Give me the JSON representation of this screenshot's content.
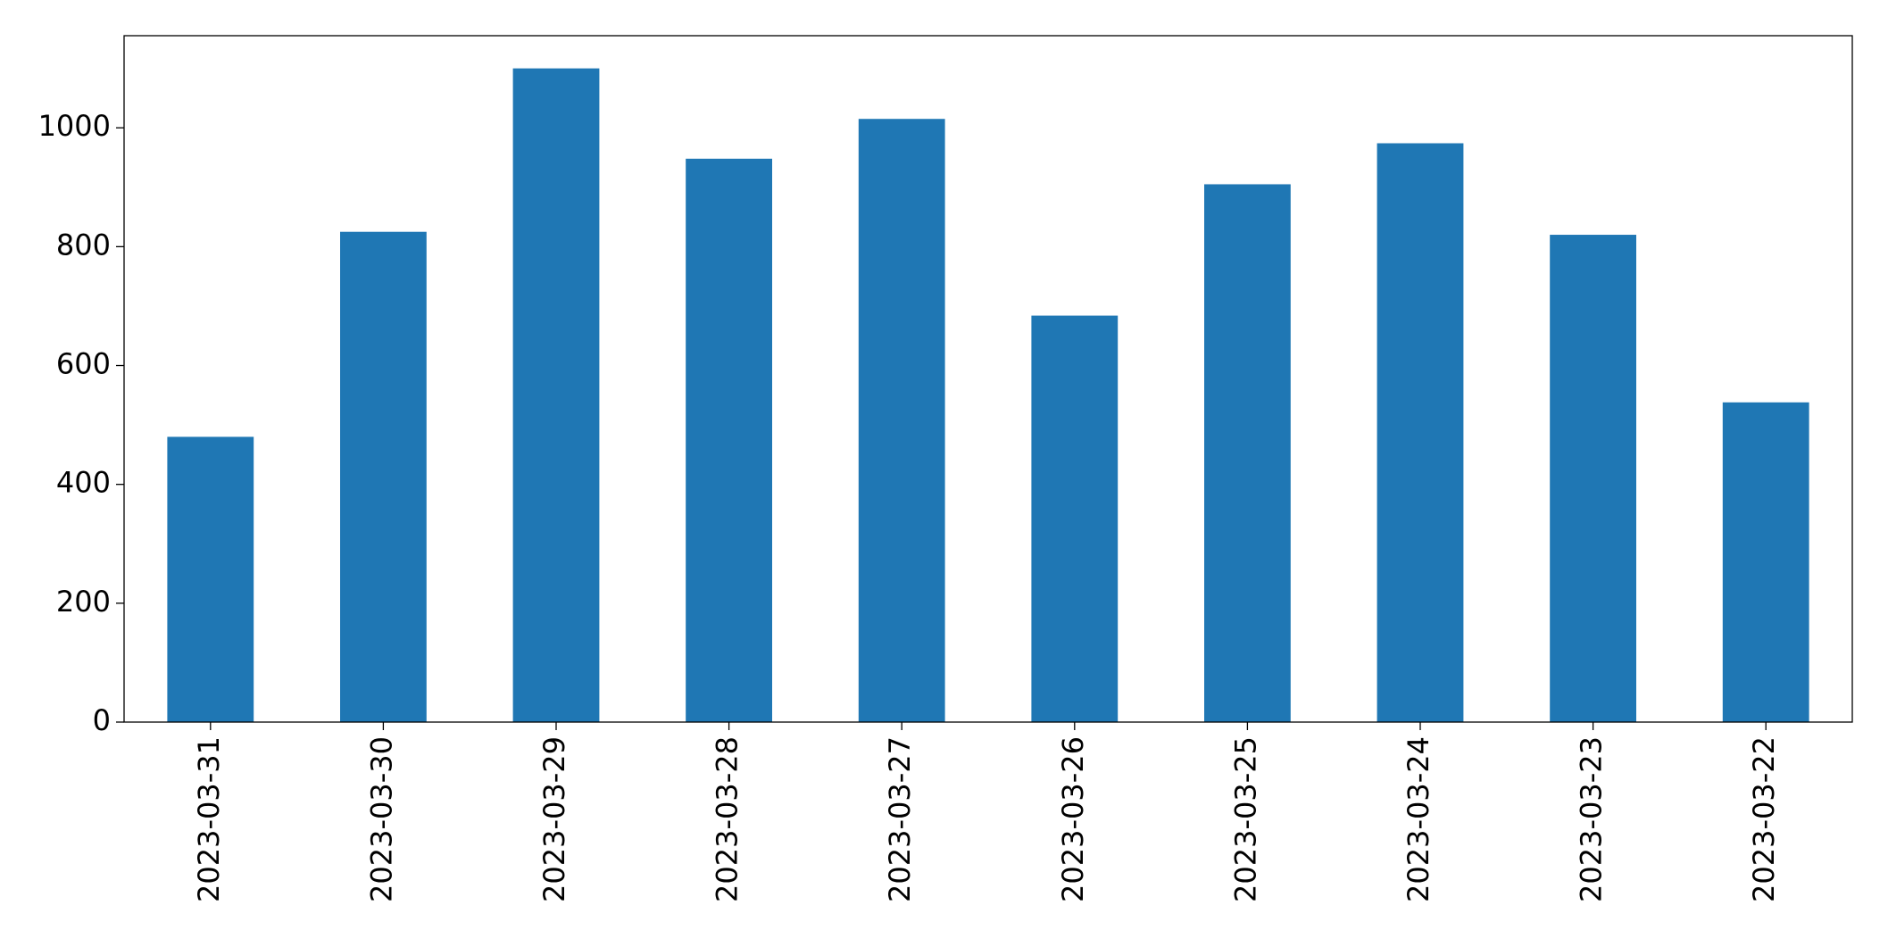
{
  "chart_data": {
    "type": "bar",
    "categories": [
      "2023-03-31",
      "2023-03-30",
      "2023-03-29",
      "2023-03-28",
      "2023-03-27",
      "2023-03-26",
      "2023-03-25",
      "2023-03-24",
      "2023-03-23",
      "2023-03-22"
    ],
    "values": [
      480,
      825,
      1100,
      948,
      1015,
      684,
      905,
      974,
      820,
      538
    ],
    "color": "#1f77b4",
    "ylim": [
      0,
      1155
    ],
    "yticks": [
      0,
      200,
      400,
      600,
      800,
      1000
    ],
    "grid": false
  }
}
